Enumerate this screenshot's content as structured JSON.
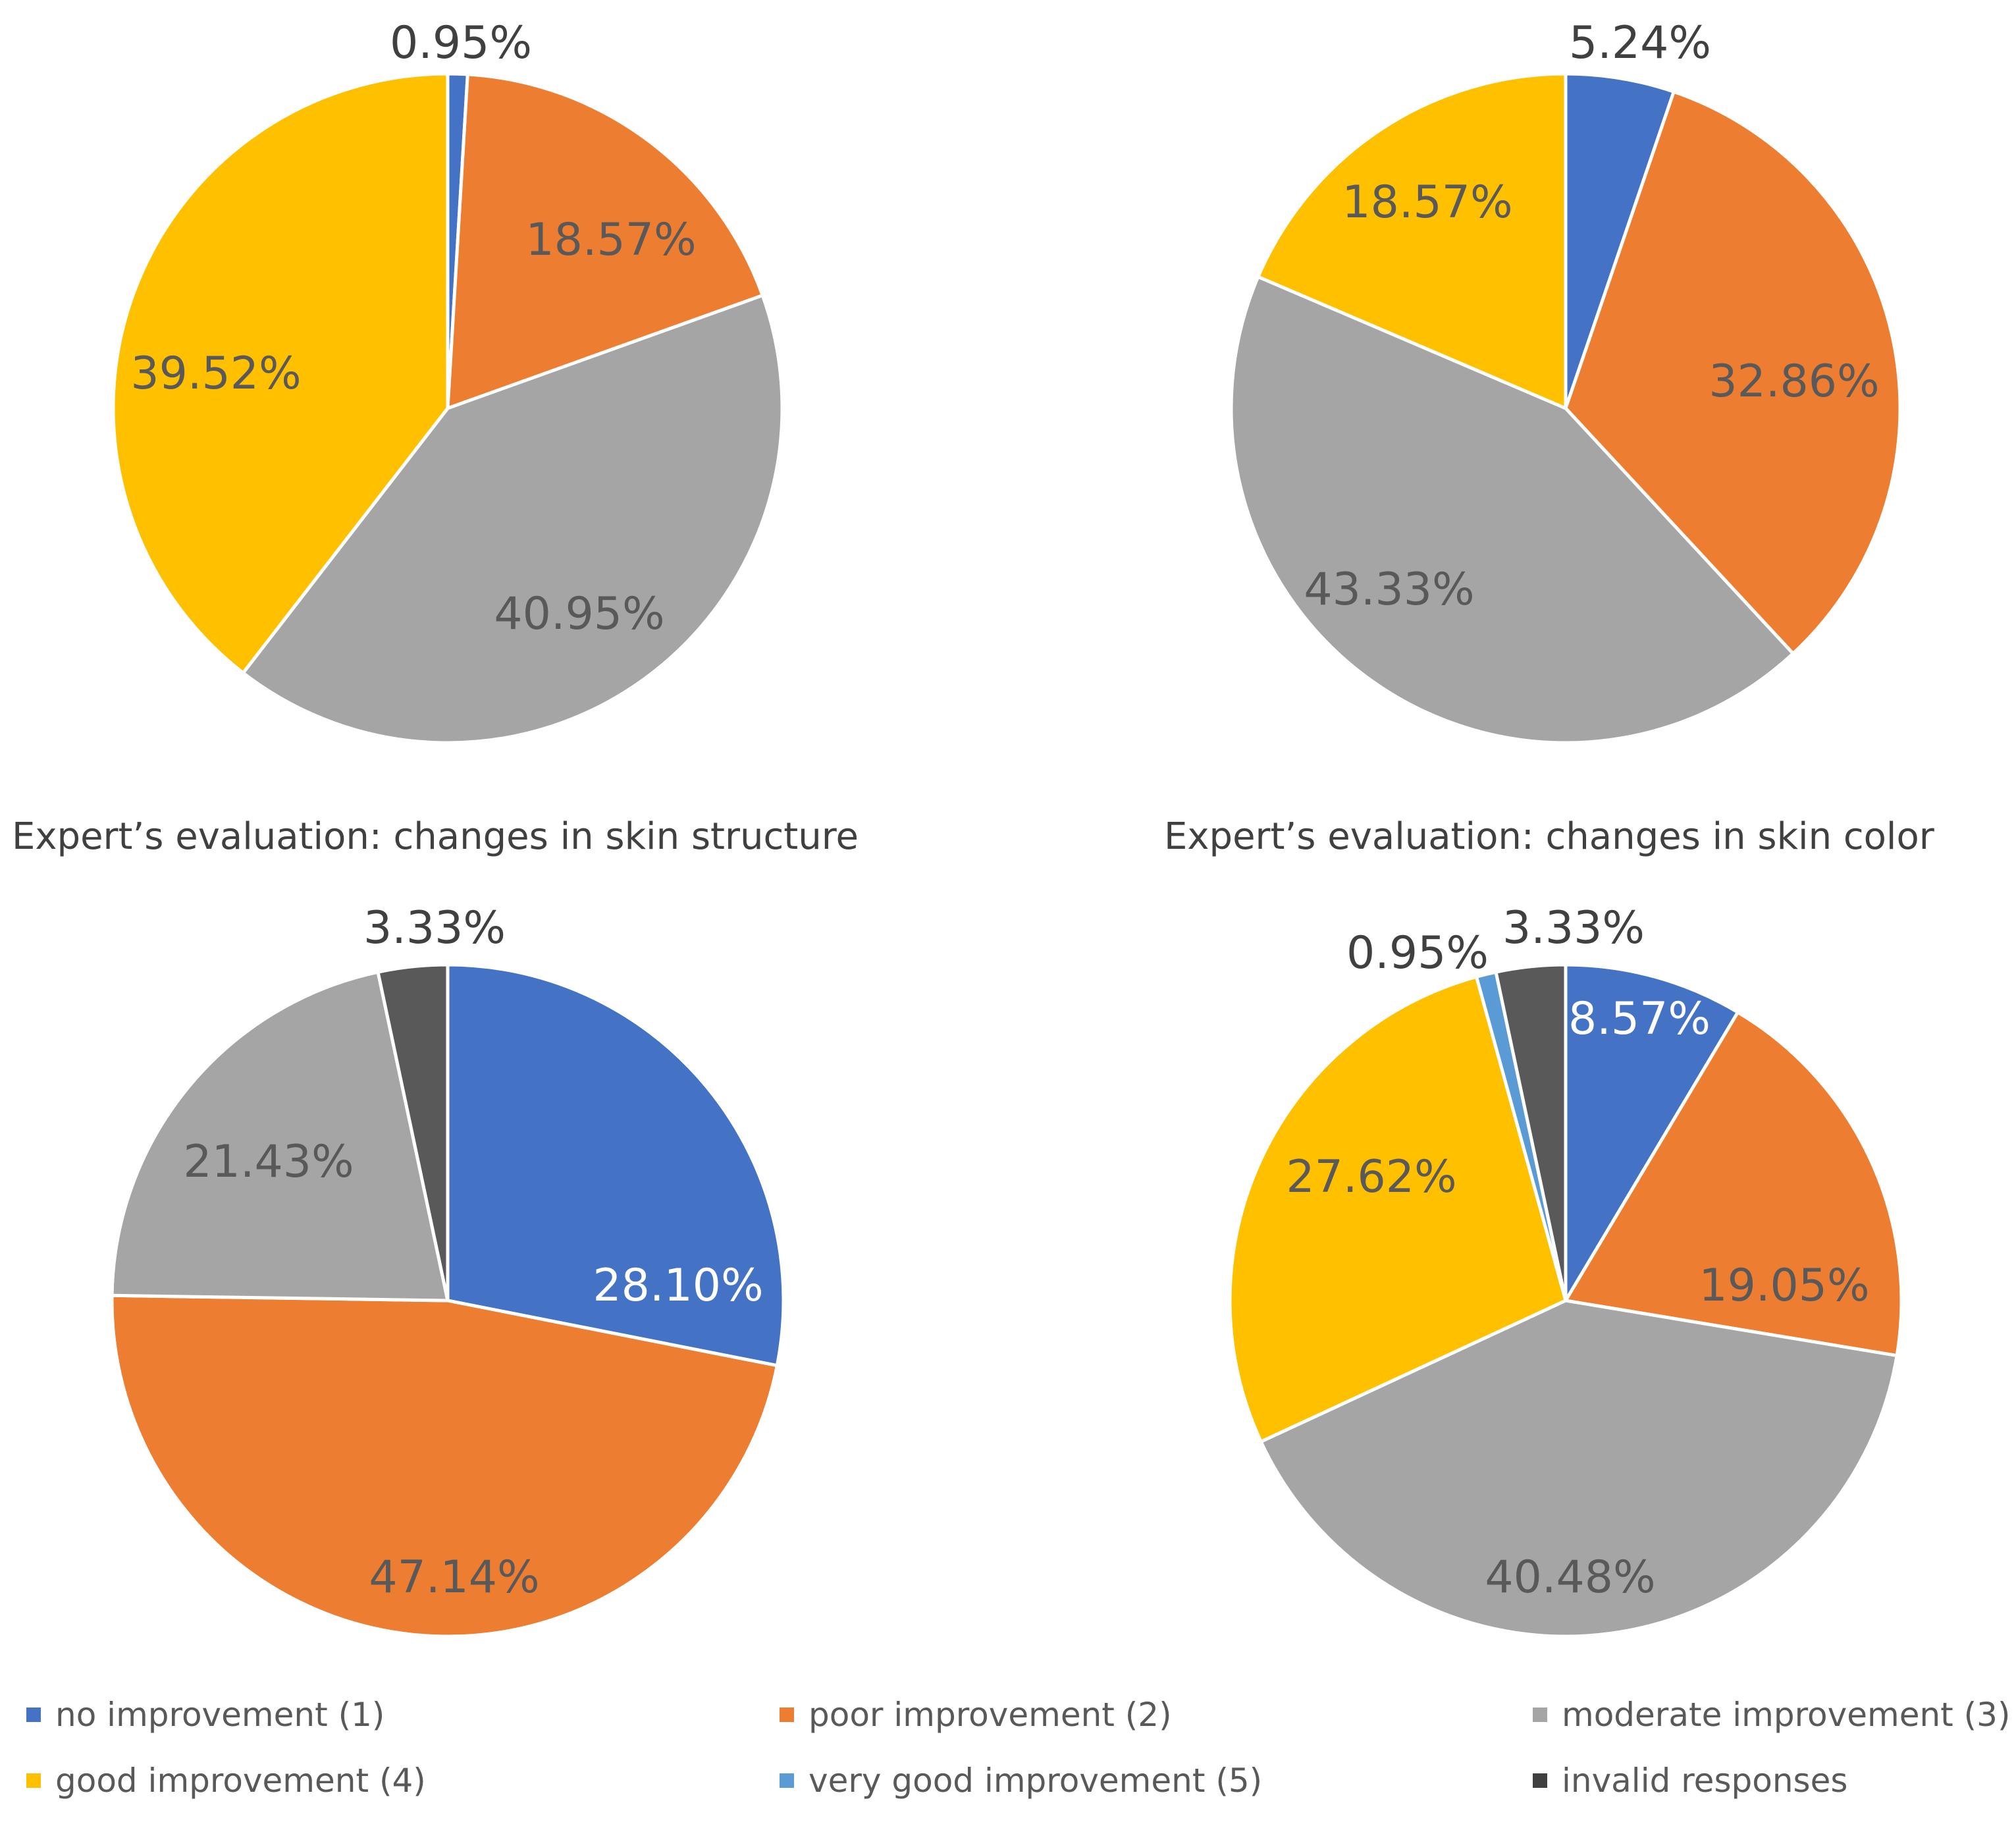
{
  "chart_data": [
    {
      "type": "pie",
      "title": "",
      "categories": [
        "no improvement (1)",
        "poor improvement (2)",
        "moderate improvement (3)",
        "good improvement (4)"
      ],
      "values": [
        0.95,
        18.57,
        40.95,
        39.52
      ],
      "labels": [
        "0.95%",
        "18.57%",
        "40.95%",
        "39.52%"
      ],
      "colors": [
        "#4472C4",
        "#ED7D31",
        "#A5A5A5",
        "#FFC000"
      ]
    },
    {
      "type": "pie",
      "title": "",
      "categories": [
        "no improvement (1)",
        "poor improvement (2)",
        "moderate improvement (3)",
        "good improvement (4)"
      ],
      "values": [
        5.24,
        32.86,
        43.33,
        18.57
      ],
      "labels": [
        "5.24%",
        "32.86%",
        "43.33%",
        "18.57%"
      ],
      "colors": [
        "#4472C4",
        "#ED7D31",
        "#A5A5A5",
        "#FFC000"
      ]
    },
    {
      "type": "pie",
      "title": "Expert’s evaluation: changes in skin structure",
      "categories": [
        "no improvement (1)",
        "poor improvement (2)",
        "moderate improvement (3)",
        "invalid responses"
      ],
      "values": [
        28.1,
        47.14,
        21.43,
        3.33
      ],
      "labels": [
        "28.10%",
        "47.14%",
        "21.43%",
        "3.33%"
      ],
      "colors": [
        "#4472C4",
        "#ED7D31",
        "#A5A5A5",
        "#595959"
      ]
    },
    {
      "type": "pie",
      "title": "Expert’s evaluation: changes in skin color",
      "categories": [
        "no improvement (1)",
        "poor improvement (2)",
        "moderate improvement (3)",
        "good improvement (4)",
        "very good improvement (5)",
        "invalid responses"
      ],
      "values": [
        8.57,
        19.05,
        40.48,
        27.62,
        0.95,
        3.33
      ],
      "labels": [
        "8.57%",
        "19.05%",
        "40.48%",
        "27.62%",
        "0.95%",
        "3.33%"
      ],
      "colors": [
        "#4472C4",
        "#ED7D31",
        "#A5A5A5",
        "#FFC000",
        "#5B9BD5",
        "#595959"
      ]
    }
  ],
  "legend": {
    "items": [
      {
        "label": "no improvement (1)",
        "color": "#4472C4"
      },
      {
        "label": "poor improvement (2)",
        "color": "#ED7D31"
      },
      {
        "label": "moderate improvement (3)",
        "color": "#A5A5A5"
      },
      {
        "label": "good improvement (4)",
        "color": "#FFC000"
      },
      {
        "label": "very good improvement (5)",
        "color": "#5B9BD5"
      },
      {
        "label": "invalid responses",
        "color": "#404040"
      }
    ]
  }
}
